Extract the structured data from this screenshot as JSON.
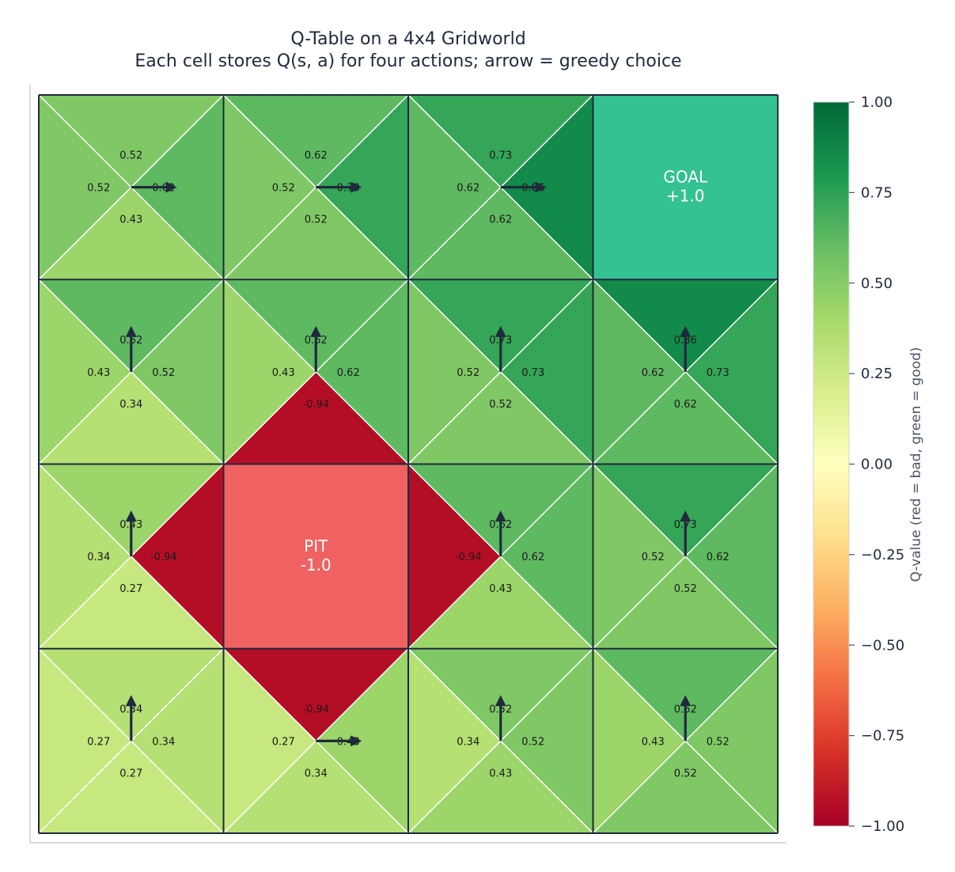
{
  "chart_data": {
    "type": "heatmap",
    "title": "Q-Table on a 4x4 Gridworld",
    "subtitle": "Each cell stores Q(s, a) for four actions; arrow = greedy choice",
    "grid_size": 4,
    "actions": [
      "up",
      "right",
      "down",
      "left"
    ],
    "cells": [
      {
        "row": 0,
        "col": 0,
        "q": {
          "up": 0.52,
          "right": 0.62,
          "down": 0.43,
          "left": 0.52
        },
        "labels": {
          "up": "0.52",
          "right": "0.62",
          "down": "0.43",
          "left": "0.52"
        },
        "greedy": "right"
      },
      {
        "row": 0,
        "col": 1,
        "q": {
          "up": 0.62,
          "right": 0.73,
          "down": 0.52,
          "left": 0.52
        },
        "labels": {
          "up": "0.62",
          "right": "0.73",
          "down": "0.52",
          "left": "0.52"
        },
        "greedy": "right"
      },
      {
        "row": 0,
        "col": 2,
        "q": {
          "up": 0.73,
          "right": 0.86,
          "down": 0.62,
          "left": 0.62
        },
        "labels": {
          "up": "0.73",
          "right": "0.86",
          "down": "0.62",
          "left": "0.62"
        },
        "greedy": "right"
      },
      {
        "row": 0,
        "col": 3,
        "special": {
          "line1": "GOAL",
          "line2": "+1.0",
          "value": 1.0
        }
      },
      {
        "row": 1,
        "col": 0,
        "q": {
          "up": 0.62,
          "right": 0.52,
          "down": 0.34,
          "left": 0.43
        },
        "labels": {
          "up": "0.62",
          "right": "0.52",
          "down": "0.34",
          "left": "0.43"
        },
        "greedy": "up"
      },
      {
        "row": 1,
        "col": 1,
        "q": {
          "up": 0.62,
          "right": 0.62,
          "down": -0.94,
          "left": 0.43
        },
        "labels": {
          "up": "0.62",
          "right": "0.62",
          "down": "-0.94",
          "left": "0.43"
        },
        "greedy": "up"
      },
      {
        "row": 1,
        "col": 2,
        "q": {
          "up": 0.73,
          "right": 0.73,
          "down": 0.52,
          "left": 0.52
        },
        "labels": {
          "up": "0.73",
          "right": "0.73",
          "down": "0.52",
          "left": "0.52"
        },
        "greedy": "up"
      },
      {
        "row": 1,
        "col": 3,
        "q": {
          "up": 0.86,
          "right": 0.73,
          "down": 0.62,
          "left": 0.62
        },
        "labels": {
          "up": "0.86",
          "right": "0.73",
          "down": "0.62",
          "left": "0.62"
        },
        "greedy": "up"
      },
      {
        "row": 2,
        "col": 0,
        "q": {
          "up": 0.43,
          "right": -0.94,
          "down": 0.27,
          "left": 0.34
        },
        "labels": {
          "up": "0.43",
          "right": "-0.94",
          "down": "0.27",
          "left": "0.34"
        },
        "greedy": "up"
      },
      {
        "row": 2,
        "col": 1,
        "special": {
          "line1": "PIT",
          "line2": "-1.0",
          "value": -1.0
        }
      },
      {
        "row": 2,
        "col": 2,
        "q": {
          "up": 0.62,
          "right": 0.62,
          "down": 0.43,
          "left": -0.94
        },
        "labels": {
          "up": "0.62",
          "right": "0.62",
          "down": "0.43",
          "left": "-0.94"
        },
        "greedy": "up"
      },
      {
        "row": 2,
        "col": 3,
        "q": {
          "up": 0.73,
          "right": 0.62,
          "down": 0.52,
          "left": 0.52
        },
        "labels": {
          "up": "0.73",
          "right": "0.62",
          "down": "0.52",
          "left": "0.52"
        },
        "greedy": "up"
      },
      {
        "row": 3,
        "col": 0,
        "q": {
          "up": 0.34,
          "right": 0.34,
          "down": 0.27,
          "left": 0.27
        },
        "labels": {
          "up": "0.34",
          "right": "0.34",
          "down": "0.27",
          "left": "0.27"
        },
        "greedy": "up"
      },
      {
        "row": 3,
        "col": 1,
        "q": {
          "up": -0.94,
          "right": 0.43,
          "down": 0.34,
          "left": 0.27
        },
        "labels": {
          "up": "-0.94",
          "right": "0.43",
          "down": "0.34",
          "left": "0.27"
        },
        "greedy": "right"
      },
      {
        "row": 3,
        "col": 2,
        "q": {
          "up": 0.52,
          "right": 0.52,
          "down": 0.43,
          "left": 0.34
        },
        "labels": {
          "up": "0.52",
          "right": "0.52",
          "down": "0.43",
          "left": "0.34"
        },
        "greedy": "up"
      },
      {
        "row": 3,
        "col": 3,
        "q": {
          "up": 0.62,
          "right": 0.52,
          "down": 0.52,
          "left": 0.43
        },
        "labels": {
          "up": "0.62",
          "right": "0.52",
          "down": "0.52",
          "left": "0.43"
        },
        "greedy": "up"
      }
    ],
    "colorbar": {
      "label": "Q-value (red = bad, green = good)",
      "range": [
        -1.0,
        1.0
      ],
      "ticks": [
        1.0,
        0.75,
        0.5,
        0.25,
        0.0,
        -0.25,
        -0.5,
        -0.75,
        -1.0
      ],
      "tick_labels": [
        "1.00",
        "0.75",
        "0.50",
        "0.25",
        "0.00",
        "−0.25",
        "−0.50",
        "−0.75",
        "−1.00"
      ],
      "colormap": "RdYlGn"
    },
    "colors": {
      "goal_fill": "#34c292",
      "pit_fill": "#f06161",
      "grid_line": "#1f2a3c",
      "triangle_edge": "#ffffff",
      "arrow": "#1f2a3c",
      "frame": "#d9d9d9"
    }
  }
}
